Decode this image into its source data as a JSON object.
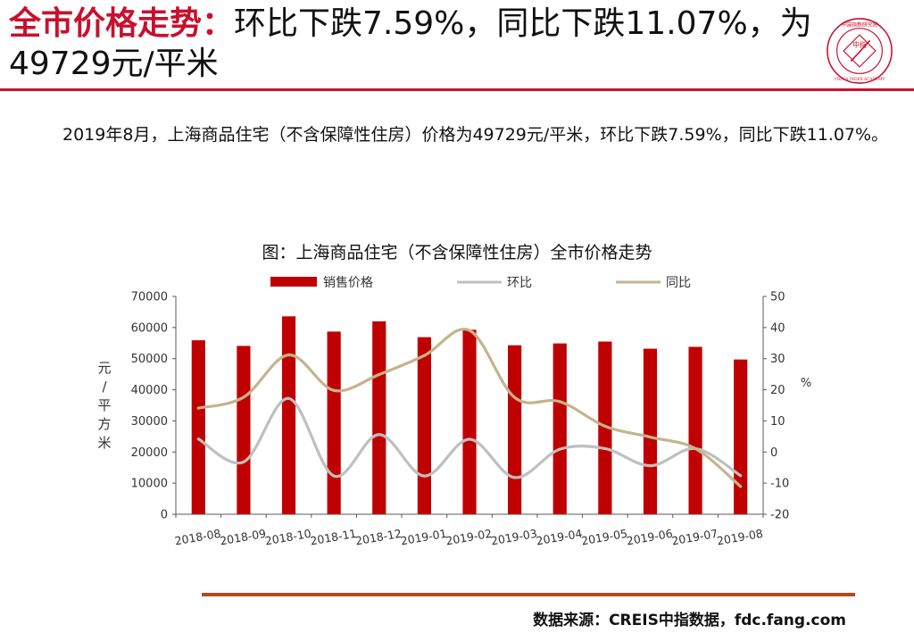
{
  "headline": {
    "lead": "全市价格走势：",
    "rest": "环比下跌7.59%，同比下跌11.07%，为49729元/平米"
  },
  "logo": {
    "text": "中国指数研究院",
    "en": "CHINA INDEX ACADEMY",
    "center": "中指"
  },
  "paragraph": "2019年8月，上海商品住宅（不含保障性住房）价格为49729元/平米，环比下跌7.59%，同比下跌11.07%。",
  "chart_title": "图：上海商品住宅（不含保障性住房）全市价格走势",
  "source": "数据来源：CREIS中指数据，fdc.fang.com",
  "colors": {
    "accent": "#c8102e",
    "bar": "#c00000",
    "mom_line": "#bfbfbf",
    "yoy_line": "#c4b48c",
    "bottom_rule": "#b5471e"
  },
  "chart_data": {
    "type": "bar",
    "title": "图：上海商品住宅（不含保障性住房）全市价格走势",
    "categories": [
      "2018-08",
      "2018-09",
      "2018-10",
      "2018-11",
      "2018-12",
      "2019-01",
      "2019-02",
      "2019-03",
      "2019-04",
      "2019-05",
      "2019-06",
      "2019-07",
      "2019-08"
    ],
    "series": [
      {
        "name": "销售价格",
        "type": "bar",
        "axis": "left",
        "values": [
          55900,
          54100,
          63600,
          58700,
          62000,
          56900,
          59300,
          54300,
          54900,
          55500,
          53200,
          53800,
          49729
        ]
      },
      {
        "name": "环比",
        "type": "line",
        "axis": "right",
        "values": [
          4.2,
          -3.2,
          17.2,
          -7.7,
          5.6,
          -7.7,
          4.1,
          -8.2,
          0.9,
          1.1,
          -4.4,
          1.1,
          -7.59
        ]
      },
      {
        "name": "同比",
        "type": "line",
        "axis": "right",
        "values": [
          14.1,
          17.6,
          31.2,
          19.8,
          24.9,
          31.0,
          39.1,
          17.5,
          16.2,
          8.3,
          4.8,
          1.1,
          -11.07
        ]
      }
    ],
    "ylabel": "元/平方米",
    "y2label": "%",
    "ylim": [
      0,
      70000
    ],
    "yticks": [
      "0",
      "10000",
      "20000",
      "30000",
      "40000",
      "50000",
      "60000",
      "70000"
    ],
    "y2lim": [
      -20,
      50
    ],
    "y2ticks": [
      "-20",
      "-10",
      "0",
      "10",
      "20",
      "30",
      "40",
      "50"
    ],
    "grid": false,
    "legend": "top"
  }
}
